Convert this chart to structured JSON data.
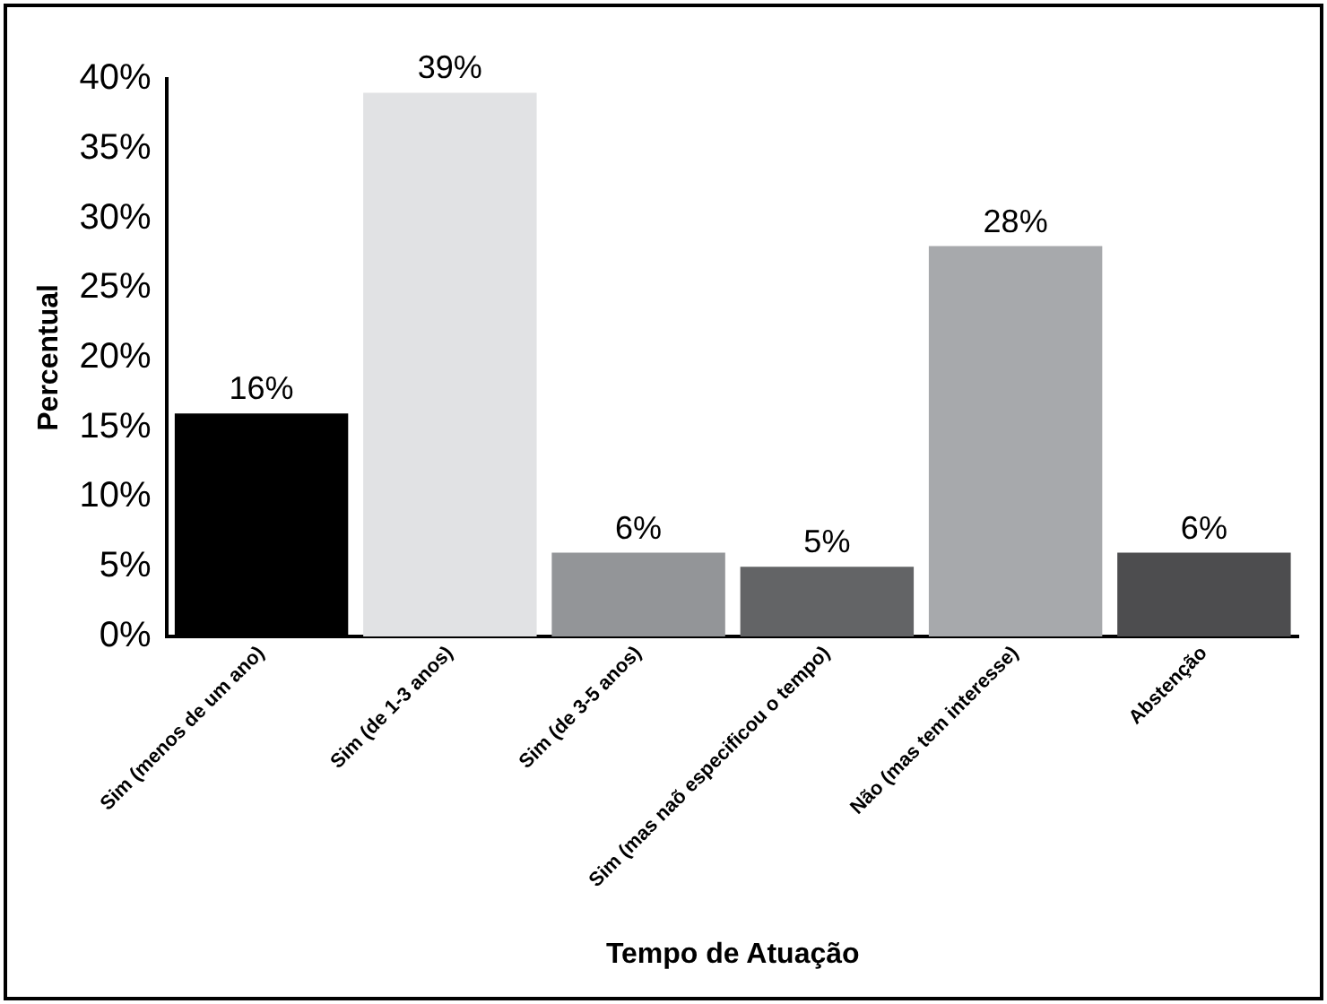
{
  "chart_data": {
    "type": "bar",
    "xlabel": "Tempo de Atuação",
    "ylabel": "Percentual",
    "categories": [
      "Sim (menos de um ano)",
      "Sim (de 1-3 anos)",
      "Sim (de 3-5 anos)",
      "Sim (mas naõ especificou o tempo)",
      "Não (mas tem interesse)",
      "Abstenção"
    ],
    "values": [
      16,
      39,
      6,
      5,
      28,
      6
    ],
    "colors": [
      "#000000",
      "#e1e2e4",
      "#939598",
      "#636466",
      "#a7a9ac",
      "#4d4d4f"
    ],
    "value_labels": [
      "16%",
      "39%",
      "6%",
      "5%",
      "28%",
      "6%"
    ],
    "ylim": [
      0,
      40
    ],
    "yticks": [
      {
        "value": 0,
        "label": "0%"
      },
      {
        "value": 5,
        "label": "5%"
      },
      {
        "value": 10,
        "label": "10%"
      },
      {
        "value": 15,
        "label": "15%"
      },
      {
        "value": 20,
        "label": "20%"
      },
      {
        "value": 25,
        "label": "25%"
      },
      {
        "value": 30,
        "label": "30%"
      },
      {
        "value": 35,
        "label": "35%"
      },
      {
        "value": 40,
        "label": "40%"
      }
    ],
    "grid": false,
    "legend": false
  }
}
